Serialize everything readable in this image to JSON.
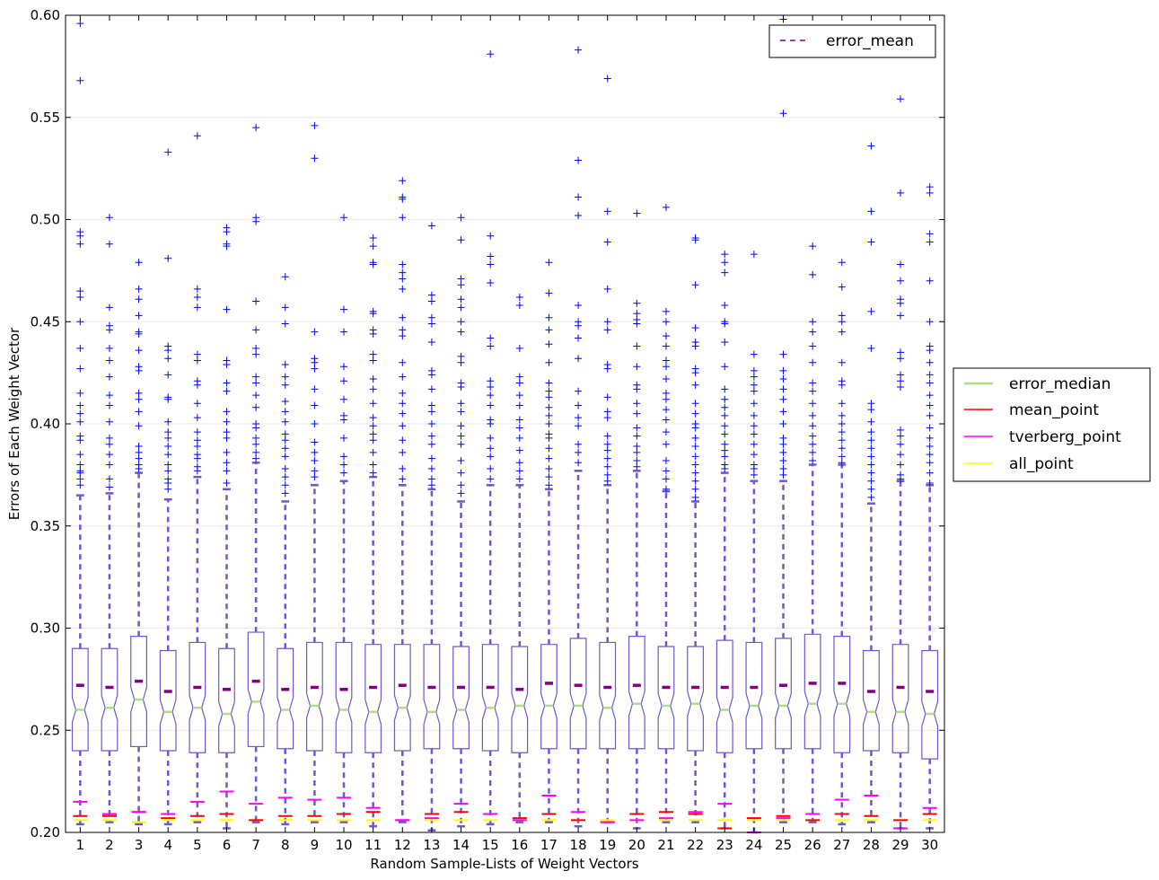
{
  "chart_data": {
    "type": "box",
    "title": "",
    "xlabel": "Random Sample-Lists of Weight Vectors",
    "ylabel": "Errors of Each Weight Vector",
    "ylim": [
      0.2,
      0.6
    ],
    "yticks": [
      "0.20",
      "0.25",
      "0.30",
      "0.35",
      "0.40",
      "0.45",
      "0.50",
      "0.55",
      "0.60"
    ],
    "grid": "horizontal",
    "categories": [
      "1",
      "2",
      "3",
      "4",
      "5",
      "6",
      "7",
      "8",
      "9",
      "10",
      "11",
      "12",
      "13",
      "14",
      "15",
      "16",
      "17",
      "18",
      "19",
      "20",
      "21",
      "22",
      "23",
      "24",
      "25",
      "26",
      "27",
      "28",
      "29",
      "30"
    ],
    "boxes": [
      {
        "label": "1",
        "q1": 0.24,
        "median": 0.26,
        "q3": 0.29,
        "whisker_low": 0.204,
        "whisker_high": 0.365,
        "mean": 0.272
      },
      {
        "label": "2",
        "q1": 0.24,
        "median": 0.261,
        "q3": 0.29,
        "whisker_low": 0.205,
        "whisker_high": 0.366,
        "mean": 0.271
      },
      {
        "label": "3",
        "q1": 0.242,
        "median": 0.265,
        "q3": 0.296,
        "whisker_low": 0.204,
        "whisker_high": 0.376,
        "mean": 0.274
      },
      {
        "label": "4",
        "q1": 0.24,
        "median": 0.259,
        "q3": 0.289,
        "whisker_low": 0.204,
        "whisker_high": 0.363,
        "mean": 0.269
      },
      {
        "label": "5",
        "q1": 0.239,
        "median": 0.261,
        "q3": 0.293,
        "whisker_low": 0.205,
        "whisker_high": 0.374,
        "mean": 0.271
      },
      {
        "label": "6",
        "q1": 0.239,
        "median": 0.258,
        "q3": 0.29,
        "whisker_low": 0.202,
        "whisker_high": 0.368,
        "mean": 0.27
      },
      {
        "label": "7",
        "q1": 0.242,
        "median": 0.264,
        "q3": 0.298,
        "whisker_low": 0.205,
        "whisker_high": 0.381,
        "mean": 0.274
      },
      {
        "label": "8",
        "q1": 0.241,
        "median": 0.26,
        "q3": 0.29,
        "whisker_low": 0.204,
        "whisker_high": 0.362,
        "mean": 0.27
      },
      {
        "label": "9",
        "q1": 0.24,
        "median": 0.262,
        "q3": 0.293,
        "whisker_low": 0.205,
        "whisker_high": 0.37,
        "mean": 0.271
      },
      {
        "label": "10",
        "q1": 0.239,
        "median": 0.26,
        "q3": 0.293,
        "whisker_low": 0.205,
        "whisker_high": 0.372,
        "mean": 0.27
      },
      {
        "label": "11",
        "q1": 0.239,
        "median": 0.259,
        "q3": 0.292,
        "whisker_low": 0.203,
        "whisker_high": 0.374,
        "mean": 0.271
      },
      {
        "label": "12",
        "q1": 0.24,
        "median": 0.261,
        "q3": 0.292,
        "whisker_low": 0.205,
        "whisker_high": 0.37,
        "mean": 0.272
      },
      {
        "label": "13",
        "q1": 0.241,
        "median": 0.259,
        "q3": 0.292,
        "whisker_low": 0.201,
        "whisker_high": 0.368,
        "mean": 0.271
      },
      {
        "label": "14",
        "q1": 0.241,
        "median": 0.26,
        "q3": 0.291,
        "whisker_low": 0.203,
        "whisker_high": 0.362,
        "mean": 0.271
      },
      {
        "label": "15",
        "q1": 0.24,
        "median": 0.261,
        "q3": 0.292,
        "whisker_low": 0.204,
        "whisker_high": 0.37,
        "mean": 0.271
      },
      {
        "label": "16",
        "q1": 0.239,
        "median": 0.262,
        "q3": 0.291,
        "whisker_low": 0.205,
        "whisker_high": 0.37,
        "mean": 0.27
      },
      {
        "label": "17",
        "q1": 0.241,
        "median": 0.262,
        "q3": 0.292,
        "whisker_low": 0.205,
        "whisker_high": 0.368,
        "mean": 0.273
      },
      {
        "label": "18",
        "q1": 0.241,
        "median": 0.262,
        "q3": 0.295,
        "whisker_low": 0.203,
        "whisker_high": 0.377,
        "mean": 0.272
      },
      {
        "label": "19",
        "q1": 0.241,
        "median": 0.261,
        "q3": 0.293,
        "whisker_low": 0.205,
        "whisker_high": 0.37,
        "mean": 0.271
      },
      {
        "label": "20",
        "q1": 0.241,
        "median": 0.263,
        "q3": 0.296,
        "whisker_low": 0.202,
        "whisker_high": 0.377,
        "mean": 0.272
      },
      {
        "label": "21",
        "q1": 0.241,
        "median": 0.262,
        "q3": 0.291,
        "whisker_low": 0.205,
        "whisker_high": 0.367,
        "mean": 0.271
      },
      {
        "label": "22",
        "q1": 0.24,
        "median": 0.263,
        "q3": 0.291,
        "whisker_low": 0.205,
        "whisker_high": 0.362,
        "mean": 0.271
      },
      {
        "label": "23",
        "q1": 0.239,
        "median": 0.26,
        "q3": 0.294,
        "whisker_low": 0.202,
        "whisker_high": 0.376,
        "mean": 0.271
      },
      {
        "label": "24",
        "q1": 0.241,
        "median": 0.262,
        "q3": 0.293,
        "whisker_low": 0.2,
        "whisker_high": 0.372,
        "mean": 0.271
      },
      {
        "label": "25",
        "q1": 0.241,
        "median": 0.262,
        "q3": 0.295,
        "whisker_low": 0.205,
        "whisker_high": 0.372,
        "mean": 0.272
      },
      {
        "label": "26",
        "q1": 0.241,
        "median": 0.263,
        "q3": 0.297,
        "whisker_low": 0.205,
        "whisker_high": 0.38,
        "mean": 0.273
      },
      {
        "label": "27",
        "q1": 0.239,
        "median": 0.263,
        "q3": 0.296,
        "whisker_low": 0.204,
        "whisker_high": 0.38,
        "mean": 0.273
      },
      {
        "label": "28",
        "q1": 0.24,
        "median": 0.259,
        "q3": 0.289,
        "whisker_low": 0.205,
        "whisker_high": 0.361,
        "mean": 0.269
      },
      {
        "label": "29",
        "q1": 0.239,
        "median": 0.259,
        "q3": 0.292,
        "whisker_low": 0.202,
        "whisker_high": 0.372,
        "mean": 0.271
      },
      {
        "label": "30",
        "q1": 0.236,
        "median": 0.258,
        "q3": 0.289,
        "whisker_low": 0.202,
        "whisker_high": 0.37,
        "mean": 0.269
      }
    ],
    "points": {
      "mean_point": [
        0.208,
        0.208,
        0.21,
        0.207,
        0.208,
        0.209,
        0.206,
        0.208,
        0.208,
        0.209,
        0.21,
        0.206,
        0.209,
        0.21,
        0.209,
        0.207,
        0.209,
        0.206,
        0.205,
        0.209,
        0.21,
        0.209,
        0.202,
        0.207,
        0.208,
        0.206,
        0.209,
        0.208,
        0.206,
        0.209
      ],
      "tverberg_point": [
        0.215,
        0.209,
        0.21,
        0.209,
        0.215,
        0.22,
        0.214,
        0.217,
        0.216,
        0.217,
        0.212,
        0.206,
        0.207,
        0.214,
        0.209,
        0.206,
        0.218,
        0.21,
        0.205,
        0.206,
        0.207,
        0.21,
        0.214,
        0.2,
        0.207,
        0.209,
        0.216,
        0.218,
        0.202,
        0.212
      ],
      "all_point": [
        0.206,
        0.206,
        0.205,
        0.206,
        0.206,
        0.206,
        0.206,
        0.206,
        0.206,
        0.206,
        0.206,
        0.206,
        0.206,
        0.206,
        0.206,
        0.206,
        0.206,
        0.206,
        0.206,
        0.206,
        0.206,
        0.206,
        0.206,
        0.206,
        0.206,
        0.206,
        0.206,
        0.206,
        0.206,
        0.206
      ]
    },
    "outliers": [
      [
        0.596,
        0.568,
        0.494,
        0.492,
        0.488,
        0.465,
        0.462,
        0.45,
        0.437,
        0.427,
        0.415,
        0.409,
        0.405,
        0.401,
        0.394,
        0.392,
        0.385,
        0.38,
        0.377,
        0.376,
        0.373,
        0.37
      ],
      [
        0.501,
        0.488,
        0.457,
        0.448,
        0.446,
        0.437,
        0.431,
        0.423,
        0.414,
        0.409,
        0.401,
        0.393,
        0.39,
        0.385,
        0.38,
        0.373,
        0.369
      ],
      [
        0.479,
        0.466,
        0.461,
        0.453,
        0.445,
        0.444,
        0.436,
        0.428,
        0.426,
        0.415,
        0.412,
        0.406,
        0.399,
        0.389,
        0.386,
        0.383,
        0.38,
        0.378
      ],
      [
        0.533,
        0.481,
        0.438,
        0.436,
        0.432,
        0.424,
        0.413,
        0.412,
        0.401,
        0.396,
        0.393,
        0.389,
        0.385,
        0.38,
        0.377,
        0.373,
        0.371,
        0.368
      ],
      [
        0.541,
        0.466,
        0.462,
        0.457,
        0.434,
        0.431,
        0.421,
        0.419,
        0.41,
        0.403,
        0.396,
        0.392,
        0.389,
        0.385,
        0.383,
        0.379,
        0.377
      ],
      [
        0.496,
        0.494,
        0.488,
        0.487,
        0.456,
        0.431,
        0.429,
        0.42,
        0.416,
        0.406,
        0.401,
        0.396,
        0.393,
        0.386,
        0.381,
        0.377,
        0.371
      ],
      [
        0.545,
        0.501,
        0.499,
        0.46,
        0.446,
        0.437,
        0.434,
        0.423,
        0.42,
        0.414,
        0.408,
        0.4,
        0.398,
        0.393,
        0.39,
        0.386,
        0.383
      ],
      [
        0.472,
        0.457,
        0.449,
        0.429,
        0.423,
        0.419,
        0.411,
        0.406,
        0.401,
        0.395,
        0.392,
        0.388,
        0.384,
        0.378,
        0.374,
        0.37,
        0.366
      ],
      [
        0.546,
        0.53,
        0.445,
        0.432,
        0.43,
        0.427,
        0.417,
        0.409,
        0.4,
        0.391,
        0.386,
        0.382,
        0.377,
        0.374
      ],
      [
        0.501,
        0.456,
        0.445,
        0.428,
        0.421,
        0.412,
        0.404,
        0.402,
        0.393,
        0.384,
        0.38,
        0.376
      ],
      [
        0.491,
        0.487,
        0.479,
        0.478,
        0.455,
        0.454,
        0.446,
        0.444,
        0.434,
        0.431,
        0.422,
        0.417,
        0.41,
        0.403,
        0.399,
        0.395,
        0.392,
        0.386,
        0.38,
        0.376
      ],
      [
        0.519,
        0.511,
        0.51,
        0.501,
        0.478,
        0.474,
        0.471,
        0.466,
        0.452,
        0.446,
        0.443,
        0.43,
        0.423,
        0.415,
        0.41,
        0.405,
        0.399,
        0.392,
        0.386,
        0.378,
        0.373
      ],
      [
        0.497,
        0.463,
        0.46,
        0.452,
        0.449,
        0.44,
        0.426,
        0.424,
        0.417,
        0.409,
        0.406,
        0.4,
        0.394,
        0.39,
        0.383,
        0.378,
        0.373,
        0.37
      ],
      [
        0.501,
        0.49,
        0.471,
        0.468,
        0.461,
        0.457,
        0.45,
        0.445,
        0.433,
        0.43,
        0.42,
        0.418,
        0.41,
        0.406,
        0.399,
        0.394,
        0.39,
        0.382,
        0.376,
        0.37,
        0.366
      ],
      [
        0.581,
        0.492,
        0.482,
        0.478,
        0.469,
        0.442,
        0.438,
        0.421,
        0.418,
        0.414,
        0.409,
        0.402,
        0.4,
        0.393,
        0.388,
        0.384,
        0.378,
        0.373
      ],
      [
        0.462,
        0.458,
        0.437,
        0.423,
        0.42,
        0.414,
        0.409,
        0.402,
        0.398,
        0.393,
        0.387,
        0.381,
        0.377,
        0.373
      ],
      [
        0.479,
        0.464,
        0.452,
        0.446,
        0.439,
        0.43,
        0.42,
        0.416,
        0.413,
        0.408,
        0.404,
        0.4,
        0.395,
        0.393,
        0.388,
        0.383,
        0.378,
        0.374,
        0.37
      ],
      [
        0.583,
        0.529,
        0.511,
        0.502,
        0.458,
        0.45,
        0.448,
        0.442,
        0.432,
        0.416,
        0.409,
        0.403,
        0.399,
        0.39,
        0.386,
        0.381
      ],
      [
        0.569,
        0.504,
        0.489,
        0.466,
        0.45,
        0.446,
        0.429,
        0.427,
        0.413,
        0.406,
        0.403,
        0.394,
        0.39,
        0.387,
        0.383,
        0.379,
        0.375,
        0.372
      ],
      [
        0.503,
        0.459,
        0.454,
        0.451,
        0.449,
        0.438,
        0.428,
        0.419,
        0.417,
        0.41,
        0.405,
        0.398,
        0.394,
        0.389,
        0.386,
        0.382,
        0.379
      ],
      [
        0.506,
        0.455,
        0.45,
        0.443,
        0.438,
        0.431,
        0.428,
        0.422,
        0.415,
        0.412,
        0.407,
        0.402,
        0.396,
        0.39,
        0.382,
        0.377,
        0.373,
        0.368
      ],
      [
        0.491,
        0.49,
        0.468,
        0.447,
        0.44,
        0.438,
        0.427,
        0.425,
        0.419,
        0.41,
        0.405,
        0.4,
        0.398,
        0.393,
        0.389,
        0.384,
        0.38,
        0.376,
        0.372,
        0.368,
        0.364
      ],
      [
        0.483,
        0.479,
        0.474,
        0.458,
        0.45,
        0.449,
        0.44,
        0.428,
        0.417,
        0.412,
        0.408,
        0.404,
        0.399,
        0.395,
        0.39,
        0.387,
        0.384,
        0.38,
        0.378
      ],
      [
        0.483,
        0.434,
        0.426,
        0.423,
        0.419,
        0.416,
        0.41,
        0.404,
        0.399,
        0.395,
        0.39,
        0.385,
        0.38,
        0.378,
        0.375
      ],
      [
        0.598,
        0.552,
        0.434,
        0.426,
        0.422,
        0.417,
        0.412,
        0.406,
        0.4,
        0.393,
        0.39,
        0.386,
        0.382,
        0.378,
        0.375
      ],
      [
        0.487,
        0.473,
        0.45,
        0.445,
        0.438,
        0.43,
        0.42,
        0.416,
        0.41,
        0.404,
        0.399,
        0.394,
        0.39,
        0.386,
        0.382
      ],
      [
        0.479,
        0.467,
        0.453,
        0.45,
        0.445,
        0.43,
        0.421,
        0.419,
        0.41,
        0.404,
        0.4,
        0.396,
        0.392,
        0.388,
        0.384,
        0.381
      ],
      [
        0.536,
        0.504,
        0.489,
        0.455,
        0.437,
        0.41,
        0.407,
        0.401,
        0.396,
        0.392,
        0.388,
        0.384,
        0.38,
        0.376,
        0.372,
        0.368,
        0.364
      ],
      [
        0.559,
        0.513,
        0.478,
        0.47,
        0.461,
        0.459,
        0.453,
        0.435,
        0.432,
        0.424,
        0.421,
        0.418,
        0.397,
        0.394,
        0.39,
        0.385,
        0.38,
        0.375,
        0.373
      ],
      [
        0.516,
        0.513,
        0.493,
        0.489,
        0.47,
        0.45,
        0.438,
        0.436,
        0.43,
        0.424,
        0.42,
        0.414,
        0.409,
        0.404,
        0.398,
        0.393,
        0.389,
        0.385,
        0.381,
        0.376,
        0.371
      ]
    ],
    "legend_top": {
      "placement": "upper-right",
      "entries": [
        {
          "name": "error_mean",
          "color": "#800080",
          "style": "dashed"
        }
      ]
    },
    "legend_side": {
      "placement": "outside-right",
      "entries": [
        {
          "name": "error_median",
          "color": "#b0dd88"
        },
        {
          "name": "mean_point",
          "color": "#ff0000"
        },
        {
          "name": "tverberg_point",
          "color": "#ff00ff"
        },
        {
          "name": "all_point",
          "color": "#ffff00"
        }
      ]
    },
    "colors": {
      "box": "#6a5acd",
      "whisker": "#6a5acd",
      "outlier": "#0000ff",
      "median": "#b0dd88",
      "mean": "#800080",
      "mean_point": "#ff0000",
      "tverberg_point": "#ff00ff",
      "all_point": "#ffff00"
    }
  }
}
